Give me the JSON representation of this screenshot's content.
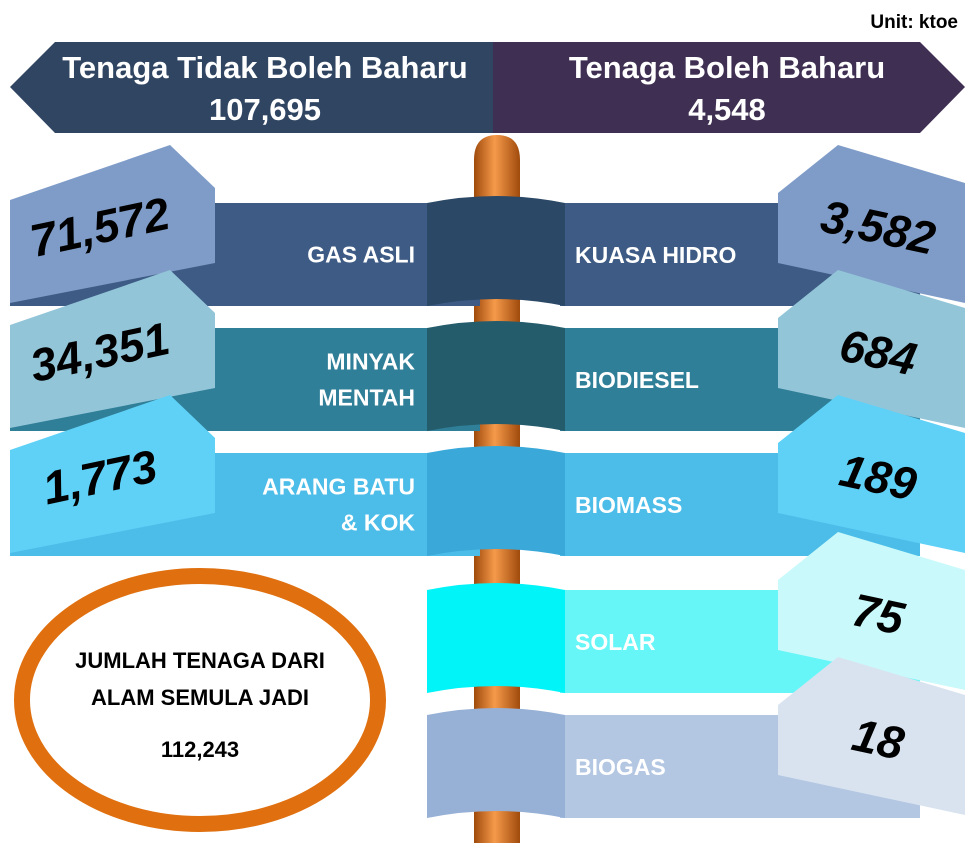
{
  "unit": "Unit: ktoe",
  "left_header": {
    "title": "Tenaga Tidak Boleh Baharu",
    "value": "107,695"
  },
  "right_header": {
    "title": "Tenaga Boleh Baharu",
    "value": "4,548"
  },
  "left_items": [
    {
      "label": [
        "GAS ASLI"
      ],
      "value": "71,572"
    },
    {
      "label": [
        "MINYAK",
        "MENTAH"
      ],
      "value": "34,351"
    },
    {
      "label": [
        "ARANG BATU",
        "& KOK"
      ],
      "value": "1,773"
    }
  ],
  "right_items": [
    {
      "label": "KUASA HIDRO",
      "value": "3,582"
    },
    {
      "label": "BIODIESEL",
      "value": "684"
    },
    {
      "label": "BIOMASS",
      "value": "189"
    },
    {
      "label": "SOLAR",
      "value": "75"
    },
    {
      "label": "BIOGAS",
      "value": "18"
    }
  ],
  "total": {
    "label": [
      "JUMLAH TENAGA DARI",
      "ALAM SEMULA JADI"
    ],
    "value": "112,243"
  }
}
